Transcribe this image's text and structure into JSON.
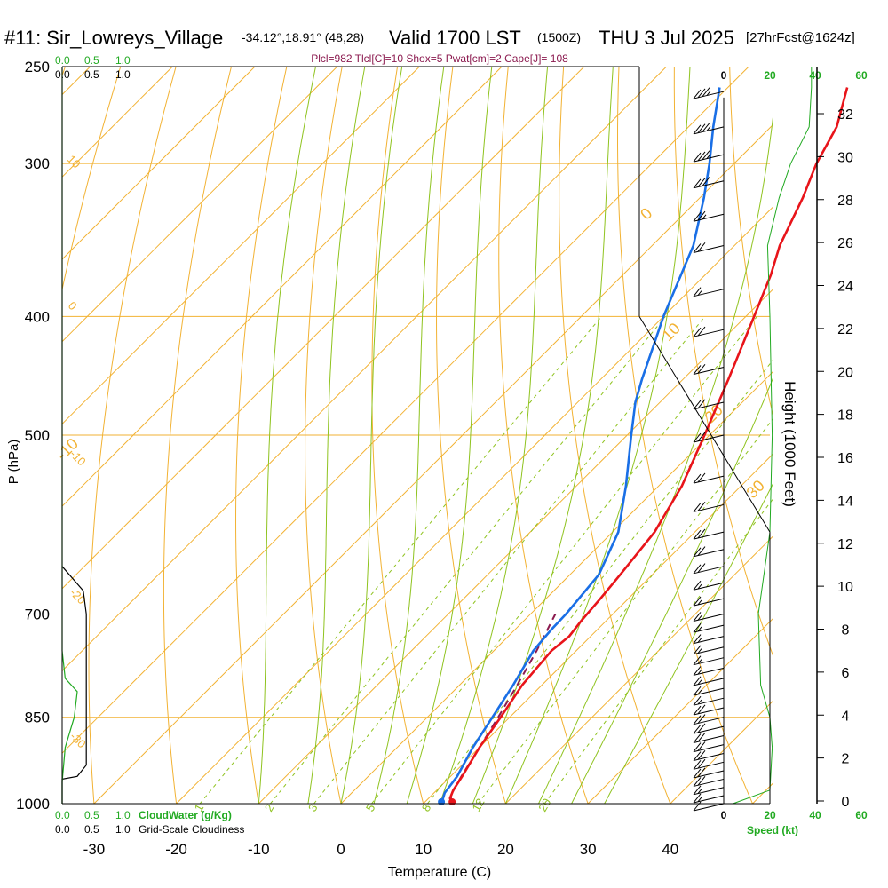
{
  "title": {
    "station": "#11: Sir_Lowreys_Village",
    "coords": "-34.12°,18.91° (48,28)",
    "valid": "Valid 1700 LST",
    "utc": "(1500Z)",
    "date": "THU 3 Jul 2025",
    "forecast": "[27hrFcst@1624z]"
  },
  "params_line": "Plcl=982 Tlcl[C]=10 Shox=5 Pwat[cm]=2 Cape[J]= 108",
  "colors": {
    "isotherm": "#f2b233",
    "dry_adiabat": "#f2b233",
    "moist_adiabat": "#8fc31f",
    "mixing_ratio": "#8fc31f",
    "temperature": "#e8141a",
    "dewpoint": "#1a6fe6",
    "parcel": "#8b1a4f",
    "cloudwater": "#22aa22",
    "cloudiness": "#000000",
    "wind_speed": "#22aa22",
    "axis": "#000000"
  },
  "chart_data": {
    "type": "line",
    "x_axis": {
      "label": "Temperature (C)",
      "ticks": [
        "-30",
        "-20",
        "-10",
        "0",
        "10",
        "20",
        "30",
        "40"
      ],
      "range": [
        -34,
        36
      ]
    },
    "y_axis": {
      "label": "P (hPa)",
      "ticks": [
        "250",
        "300",
        "400",
        "500",
        "700",
        "850",
        "1000"
      ],
      "values": [
        250,
        300,
        400,
        500,
        700,
        850,
        1000
      ]
    },
    "height_axis": {
      "label": "Height (1000 Feet)",
      "ticks": [
        "0",
        "2",
        "4",
        "6",
        "8",
        "10",
        "12",
        "14",
        "16",
        "18",
        "20",
        "22",
        "24",
        "26",
        "28",
        "30",
        "32"
      ]
    },
    "temperature_profile": [
      {
        "p": 1000,
        "t": 13.5
      },
      {
        "p": 990,
        "t": 12.6
      },
      {
        "p": 975,
        "t": 12.0
      },
      {
        "p": 950,
        "t": 11.4
      },
      {
        "p": 900,
        "t": 10.0
      },
      {
        "p": 850,
        "t": 8.9
      },
      {
        "p": 800,
        "t": 7.6
      },
      {
        "p": 750,
        "t": 7.0
      },
      {
        "p": 730,
        "t": 7.4
      },
      {
        "p": 710,
        "t": 7.0
      },
      {
        "p": 680,
        "t": 6.6
      },
      {
        "p": 650,
        "t": 6.1
      },
      {
        "p": 600,
        "t": 5.1
      },
      {
        "p": 580,
        "t": 4.2
      },
      {
        "p": 550,
        "t": 2.8
      },
      {
        "p": 500,
        "t": -0.6
      },
      {
        "p": 450,
        "t": -4.5
      },
      {
        "p": 400,
        "t": -9.0
      },
      {
        "p": 370,
        "t": -12.0
      },
      {
        "p": 350,
        "t": -14.5
      },
      {
        "p": 320,
        "t": -17.5
      },
      {
        "p": 300,
        "t": -20.0
      },
      {
        "p": 280,
        "t": -22.0
      },
      {
        "p": 260,
        "t": -25.5
      }
    ],
    "dewpoint_profile": [
      {
        "p": 1000,
        "t": 12.2
      },
      {
        "p": 980,
        "t": 11.3
      },
      {
        "p": 950,
        "t": 10.8
      },
      {
        "p": 900,
        "t": 9.2
      },
      {
        "p": 850,
        "t": 7.9
      },
      {
        "p": 800,
        "t": 6.5
      },
      {
        "p": 750,
        "t": 4.8
      },
      {
        "p": 720,
        "t": 4.4
      },
      {
        "p": 700,
        "t": 4.3
      },
      {
        "p": 650,
        "t": 3.5
      },
      {
        "p": 600,
        "t": 0.7
      },
      {
        "p": 550,
        "t": -4.0
      },
      {
        "p": 500,
        "t": -9.5
      },
      {
        "p": 470,
        "t": -13.0
      },
      {
        "p": 450,
        "t": -15.0
      },
      {
        "p": 400,
        "t": -20.0
      },
      {
        "p": 350,
        "t": -25.0
      },
      {
        "p": 320,
        "t": -29.5
      },
      {
        "p": 300,
        "t": -33.0
      },
      {
        "p": 280,
        "t": -37.0
      },
      {
        "p": 260,
        "t": -41.0
      }
    ],
    "parcel_profile": [
      {
        "p": 1000,
        "t": 13.2
      },
      {
        "p": 980,
        "t": 12.2
      },
      {
        "p": 950,
        "t": 11.3
      },
      {
        "p": 900,
        "t": 10.0
      },
      {
        "p": 850,
        "t": 8.6
      },
      {
        "p": 800,
        "t": 7.0
      },
      {
        "p": 750,
        "t": 5.2
      },
      {
        "p": 700,
        "t": 3.0
      }
    ],
    "isotherm_labels": [
      "-10",
      "0",
      "10",
      "20",
      "30"
    ],
    "dry_adiabat_labels": [
      "10",
      "0",
      "-10",
      "-20",
      "-30"
    ],
    "mixing_ratio_labels": [
      "1",
      "2",
      "3",
      "5",
      "8",
      "12",
      "20"
    ],
    "cloud_scale": {
      "cloudwater_label": "CloudWater (g/Kg)",
      "cloudiness_label": "Grid-Scale Cloudiness",
      "ticks": [
        "0.0",
        "0.5",
        "1.0"
      ]
    },
    "cloudwater_profile": [
      {
        "p": 1000,
        "v": 0.0
      },
      {
        "p": 960,
        "v": 0.0
      },
      {
        "p": 900,
        "v": 0.02
      },
      {
        "p": 850,
        "v": 0.08
      },
      {
        "p": 810,
        "v": 0.1
      },
      {
        "p": 790,
        "v": 0.02
      },
      {
        "p": 750,
        "v": 0.0
      },
      {
        "p": 250,
        "v": 0.0
      }
    ],
    "cloudiness_profile": [
      {
        "p": 1000,
        "v": 0.0
      },
      {
        "p": 955,
        "v": 0.0
      },
      {
        "p": 950,
        "v": 0.25
      },
      {
        "p": 930,
        "v": 0.4
      },
      {
        "p": 700,
        "v": 0.4
      },
      {
        "p": 670,
        "v": 0.35
      },
      {
        "p": 640,
        "v": 0.0
      }
    ],
    "wind_speed_axis": {
      "label": "Speed (kt)",
      "ticks": [
        "0",
        "20",
        "40",
        "60"
      ]
    },
    "wind_speed_profile": [
      {
        "p": 1000,
        "v": 4
      },
      {
        "p": 975,
        "v": 20
      },
      {
        "p": 900,
        "v": 21
      },
      {
        "p": 850,
        "v": 20
      },
      {
        "p": 800,
        "v": 16
      },
      {
        "p": 700,
        "v": 15
      },
      {
        "p": 600,
        "v": 20
      },
      {
        "p": 500,
        "v": 21
      },
      {
        "p": 400,
        "v": 20
      },
      {
        "p": 350,
        "v": 19
      },
      {
        "p": 320,
        "v": 24
      },
      {
        "p": 300,
        "v": 29
      },
      {
        "p": 280,
        "v": 37
      },
      {
        "p": 260,
        "v": 38
      },
      {
        "p": 250,
        "v": 38
      }
    ],
    "wind_barbs": [
      {
        "p": 1000,
        "speed": 10
      },
      {
        "p": 985,
        "speed": 15
      },
      {
        "p": 970,
        "speed": 15
      },
      {
        "p": 955,
        "speed": 20
      },
      {
        "p": 940,
        "speed": 20
      },
      {
        "p": 925,
        "speed": 20
      },
      {
        "p": 910,
        "speed": 20
      },
      {
        "p": 895,
        "speed": 20
      },
      {
        "p": 880,
        "speed": 20
      },
      {
        "p": 865,
        "speed": 20
      },
      {
        "p": 850,
        "speed": 20
      },
      {
        "p": 835,
        "speed": 20
      },
      {
        "p": 820,
        "speed": 15
      },
      {
        "p": 805,
        "speed": 15
      },
      {
        "p": 790,
        "speed": 15
      },
      {
        "p": 775,
        "speed": 15
      },
      {
        "p": 760,
        "speed": 15
      },
      {
        "p": 745,
        "speed": 15
      },
      {
        "p": 730,
        "speed": 15
      },
      {
        "p": 715,
        "speed": 15
      },
      {
        "p": 700,
        "speed": 15
      },
      {
        "p": 680,
        "speed": 15
      },
      {
        "p": 660,
        "speed": 15
      },
      {
        "p": 640,
        "speed": 20
      },
      {
        "p": 620,
        "speed": 20
      },
      {
        "p": 600,
        "speed": 20
      },
      {
        "p": 570,
        "speed": 20
      },
      {
        "p": 540,
        "speed": 20
      },
      {
        "p": 500,
        "speed": 20
      },
      {
        "p": 470,
        "speed": 20
      },
      {
        "p": 440,
        "speed": 20
      },
      {
        "p": 410,
        "speed": 20
      },
      {
        "p": 380,
        "speed": 15
      },
      {
        "p": 350,
        "speed": 20
      },
      {
        "p": 330,
        "speed": 25
      },
      {
        "p": 310,
        "speed": 30
      },
      {
        "p": 295,
        "speed": 35
      },
      {
        "p": 280,
        "speed": 35
      },
      {
        "p": 262,
        "speed": 35
      }
    ]
  }
}
